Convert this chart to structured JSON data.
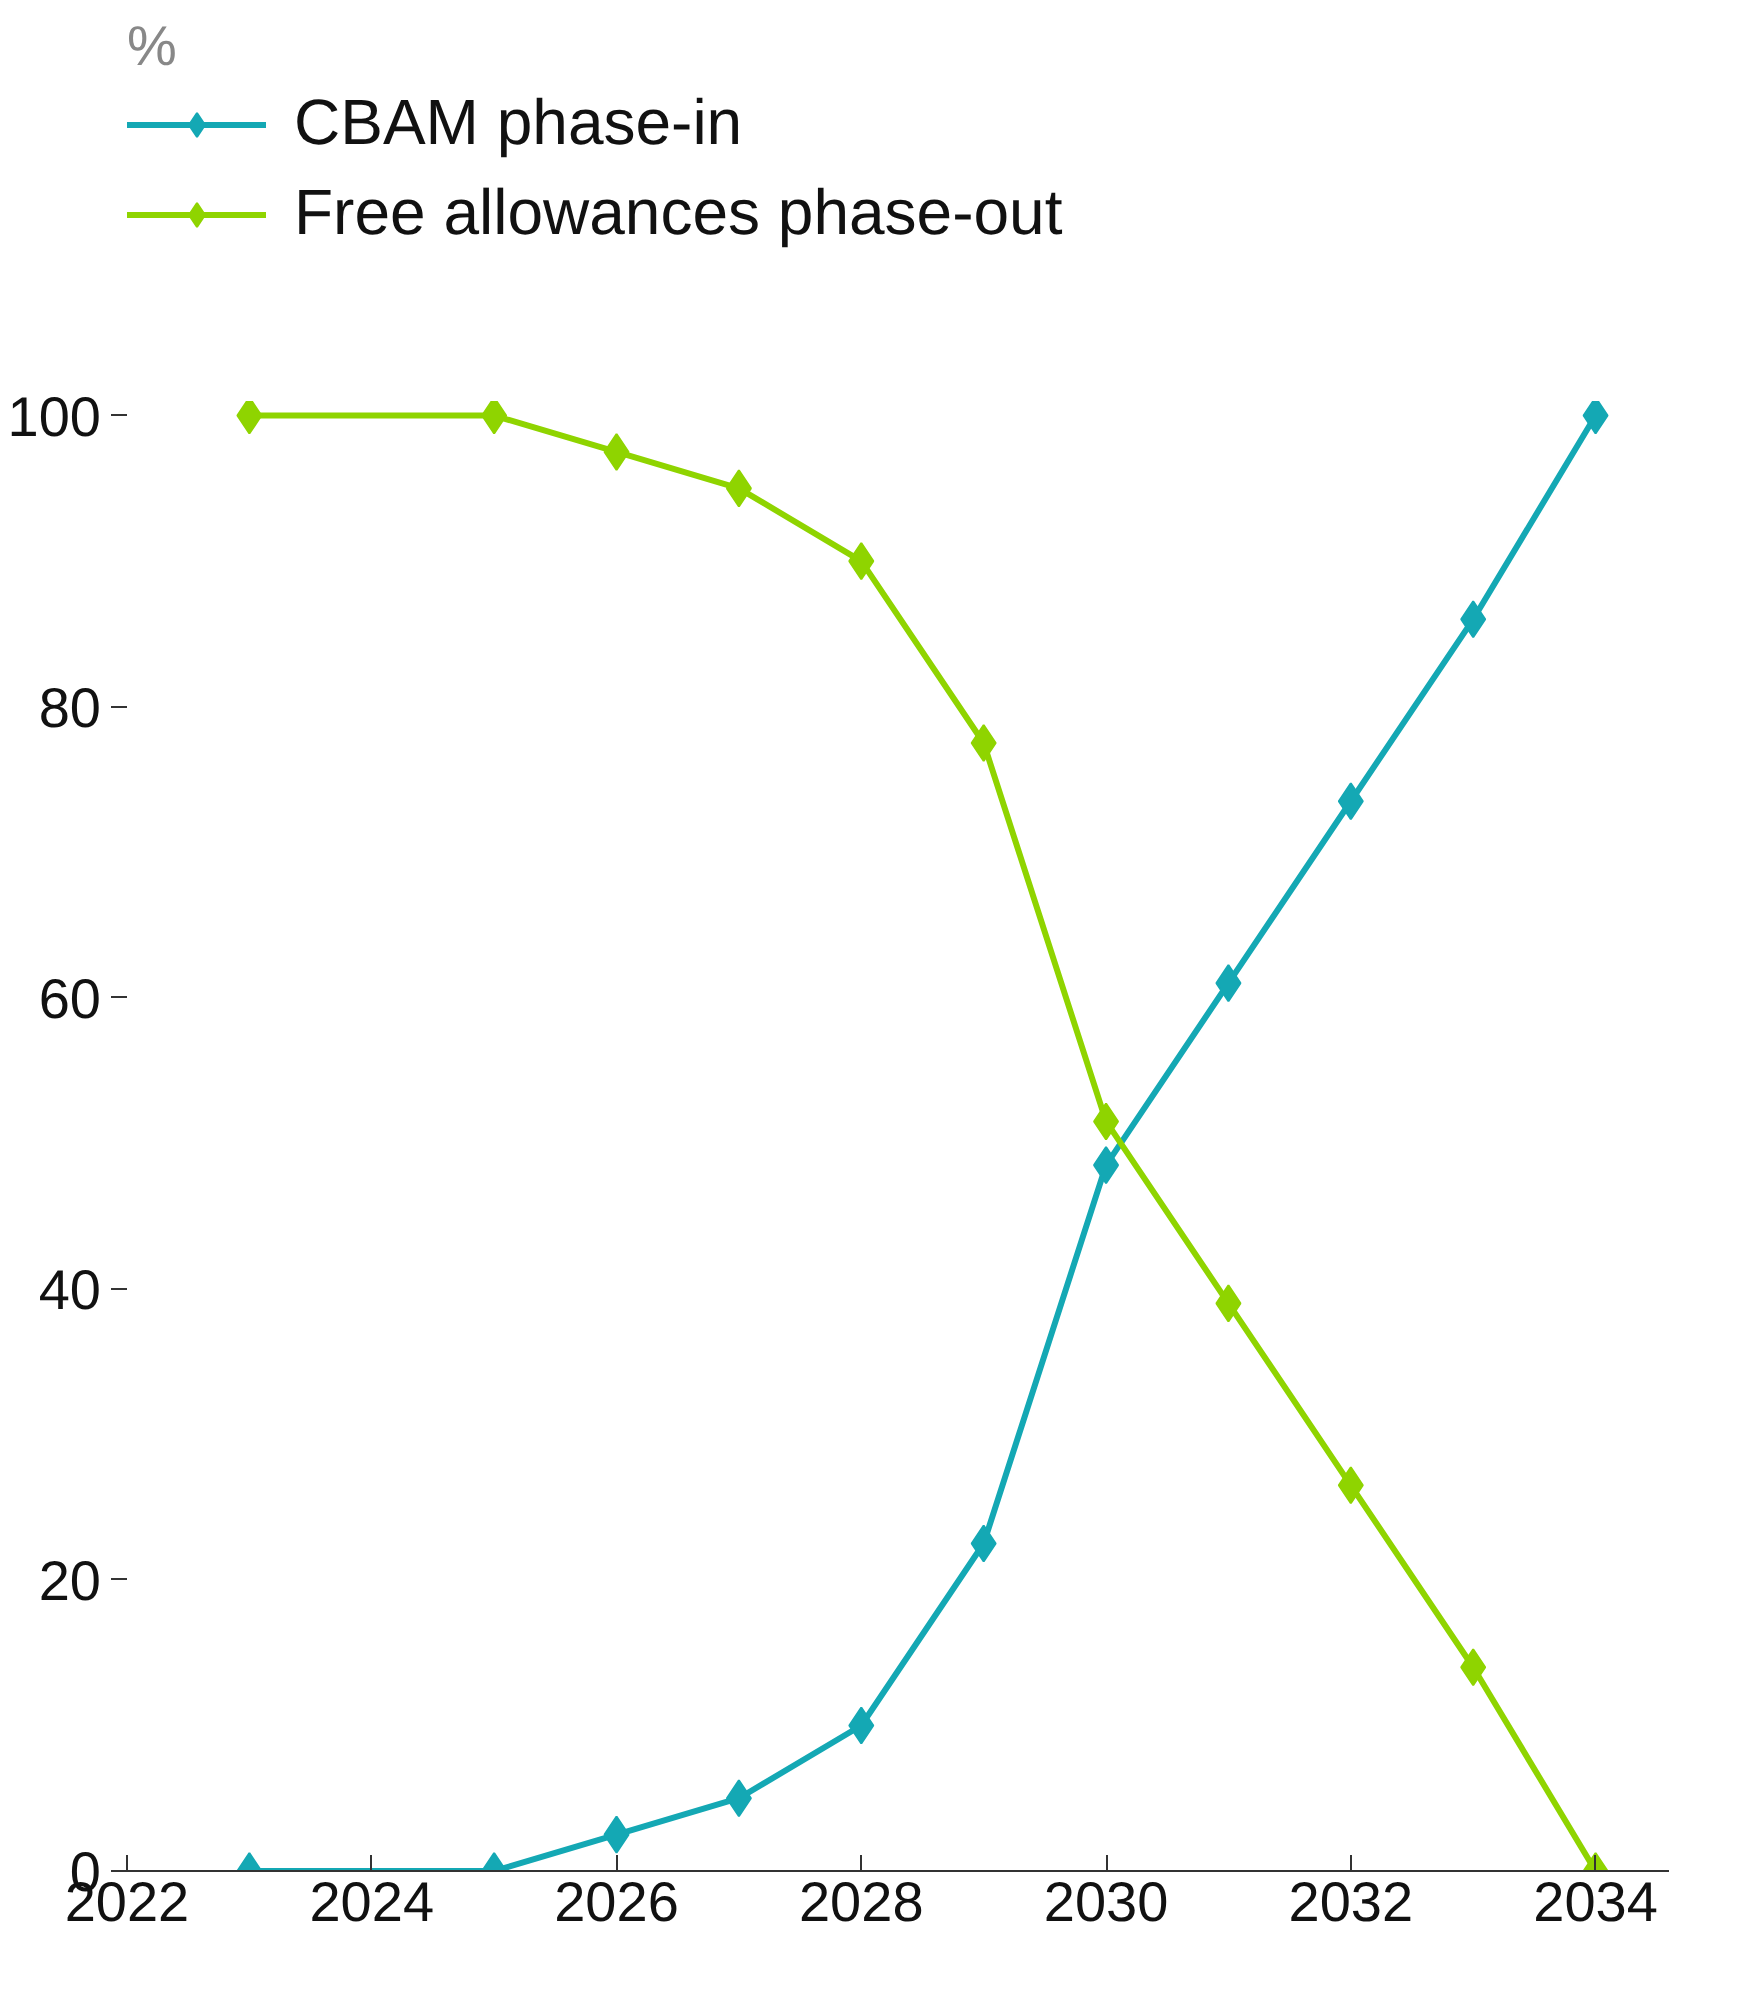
{
  "chart_data": {
    "type": "line",
    "annotations": [
      "%"
    ],
    "x": [
      2023,
      2025,
      2026,
      2027,
      2028,
      2029,
      2030,
      2031,
      2032,
      2033,
      2034
    ],
    "series": [
      {
        "name": "CBAM phase-in",
        "color": "#14a8b4",
        "values": [
          0,
          0,
          2.5,
          5,
          10,
          22.5,
          48.5,
          61,
          73.5,
          86,
          100
        ]
      },
      {
        "name": "Free allowances phase-out",
        "color": "#8fd400",
        "values": [
          100,
          100,
          97.5,
          95,
          90,
          77.5,
          51.5,
          39,
          26.5,
          14,
          0
        ]
      }
    ],
    "xlim": [
      2022,
      2034.6
    ],
    "xticks": [
      2022,
      2024,
      2026,
      2028,
      2030,
      2032,
      2034
    ],
    "ylim": [
      0,
      100
    ],
    "yticks": [
      0,
      20,
      40,
      60,
      80,
      100
    ],
    "grid": false,
    "legend": "top left",
    "marker": "diamond",
    "line_style": "solid"
  }
}
